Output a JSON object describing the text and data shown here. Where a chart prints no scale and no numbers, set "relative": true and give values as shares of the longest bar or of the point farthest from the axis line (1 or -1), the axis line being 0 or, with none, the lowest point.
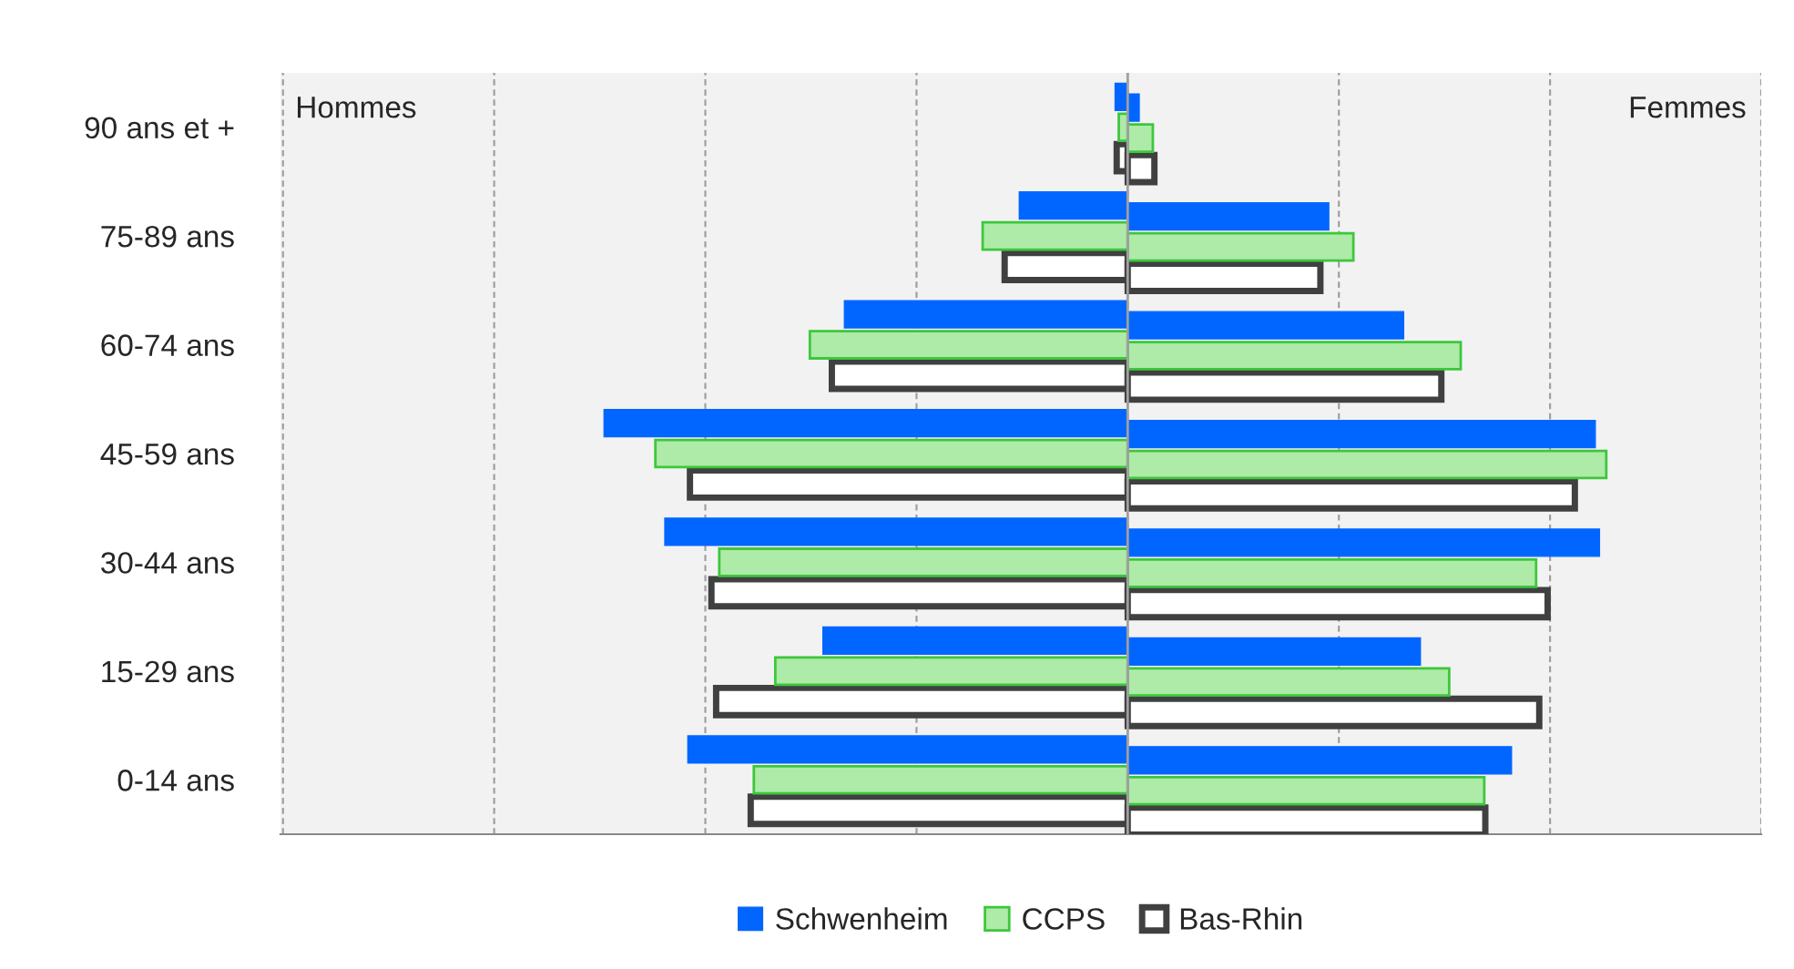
{
  "chart_data": {
    "type": "bar",
    "orientation": "horizontal",
    "relative": true,
    "grid": "x",
    "legend": "bottom",
    "categories": [
      "90 ans et +",
      "75-89 ans",
      "60-74 ans",
      "45-59 ans",
      "30-44 ans",
      "15-29 ans",
      "0-14 ans"
    ],
    "annotations": [
      "Hommes",
      "Femmes"
    ],
    "series": [
      {
        "name": "Schwenheim",
        "color": "#0066ff",
        "values": [
          -0.024,
          -0.207,
          -0.541,
          -1,
          -0.884,
          -0.582,
          -0.84
        ]
      },
      {
        "name": "CCPS",
        "color": "#aeeaa8",
        "values": [
          -0.017,
          -0.277,
          -0.607,
          -0.902,
          -0.78,
          -0.673,
          -0.714
        ]
      },
      {
        "name": "Bas-Rhin",
        "color": "#404040",
        "values": [
          -0.021,
          -0.235,
          -0.565,
          -0.836,
          -0.795,
          -0.786,
          -0.72
        ]
      },
      {
        "color": "#0066ff",
        "values": [
          0.022,
          0.384,
          0.527,
          0.893,
          0.901,
          0.559,
          0.733
        ]
      },
      {
        "color": "#aeeaa8",
        "values": [
          0.048,
          0.431,
          0.636,
          0.914,
          0.78,
          0.614,
          0.681
        ]
      },
      {
        "color": "#404040",
        "values": [
          0.051,
          0.368,
          0.599,
          0.854,
          0.802,
          0.786,
          0.683
        ]
      }
    ]
  }
}
